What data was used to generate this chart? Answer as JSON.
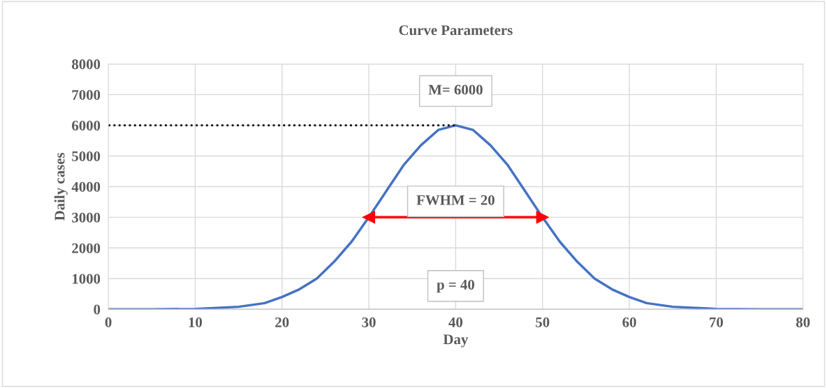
{
  "chart_data": {
    "type": "line",
    "title": "Curve Parameters",
    "xlabel": "Day",
    "ylabel": "Daily cases",
    "xlim": [
      0,
      80
    ],
    "xticks": [
      0,
      10,
      20,
      30,
      40,
      50,
      60,
      70,
      80
    ],
    "ylim": [
      0,
      8000
    ],
    "yticks": [
      0,
      1000,
      2000,
      3000,
      4000,
      5000,
      6000,
      7000,
      8000
    ],
    "grid": true,
    "series": [
      {
        "color": "#4472c4",
        "line_style": "solid",
        "x": [
          0,
          5,
          10,
          15,
          18,
          20,
          22,
          24,
          26,
          28,
          30,
          32,
          34,
          36,
          38,
          40,
          42,
          44,
          46,
          48,
          50,
          52,
          54,
          56,
          58,
          60,
          62,
          65,
          70,
          75,
          80
        ],
        "values": [
          0,
          0,
          10,
          80,
          200,
          400,
          650,
          1000,
          1550,
          2200,
          3000,
          3850,
          4700,
          5350,
          5850,
          6000,
          5850,
          5350,
          4700,
          3850,
          3000,
          2200,
          1550,
          1000,
          650,
          400,
          200,
          80,
          10,
          0,
          0
        ]
      },
      {
        "color": "#000000",
        "line_style": "dotted",
        "x": [
          0,
          40
        ],
        "values": [
          6000,
          6000
        ]
      },
      {
        "color": "#ff0000",
        "line_style": "solid",
        "marker": "triangle",
        "x": [
          30,
          50
        ],
        "values": [
          3000,
          3000
        ]
      }
    ],
    "annotations": [
      "M= 6000",
      "FWHM = 20",
      "p = 40"
    ]
  }
}
